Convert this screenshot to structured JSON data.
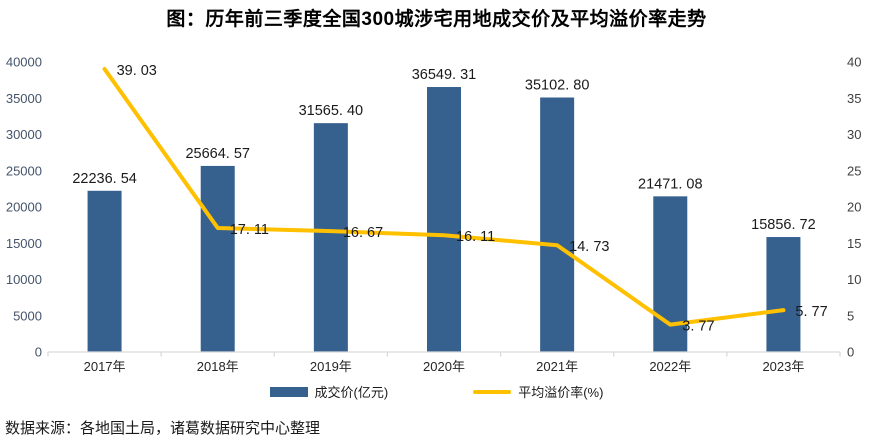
{
  "title": "图：历年前三季度全国300城涉宅用地成交价及平均溢价率走势",
  "source_note": "数据来源：各地国土局，诸葛数据研究中心整理",
  "colors": {
    "bar": "#36618F",
    "line": "#FFC000",
    "axis_line": "#D9D9D9",
    "left_axis_text": "#44546A",
    "right_axis_text": "#404040",
    "x_axis_text": "#262626",
    "data_label_text": "#1A1A1A"
  },
  "chart_data": {
    "type": "bar+line combo",
    "categories": [
      "2017年",
      "2018年",
      "2019年",
      "2020年",
      "2021年",
      "2022年",
      "2023年"
    ],
    "series": [
      {
        "name": "成交价(亿元)",
        "type": "bar",
        "axis": "left",
        "values": [
          22236.54,
          25664.57,
          31565.4,
          36549.31,
          35102.8,
          21471.08,
          15856.72
        ],
        "labels": [
          "22236. 54",
          "25664. 57",
          "31565. 40",
          "36549. 31",
          "35102. 80",
          "21471. 08",
          "15856. 72"
        ]
      },
      {
        "name": "平均溢价率(%)",
        "type": "line",
        "axis": "right",
        "values": [
          39.03,
          17.11,
          16.67,
          16.11,
          14.73,
          3.77,
          5.77
        ],
        "labels": [
          "39. 03",
          "17. 11",
          "16. 67",
          "16. 11",
          "14. 73",
          "3. 77",
          "5. 77"
        ]
      }
    ],
    "left_axis": {
      "min": 0,
      "max": 40000,
      "step": 5000
    },
    "right_axis": {
      "min": 0,
      "max": 40,
      "step": 5
    },
    "grid": false,
    "legend_position": "bottom"
  }
}
